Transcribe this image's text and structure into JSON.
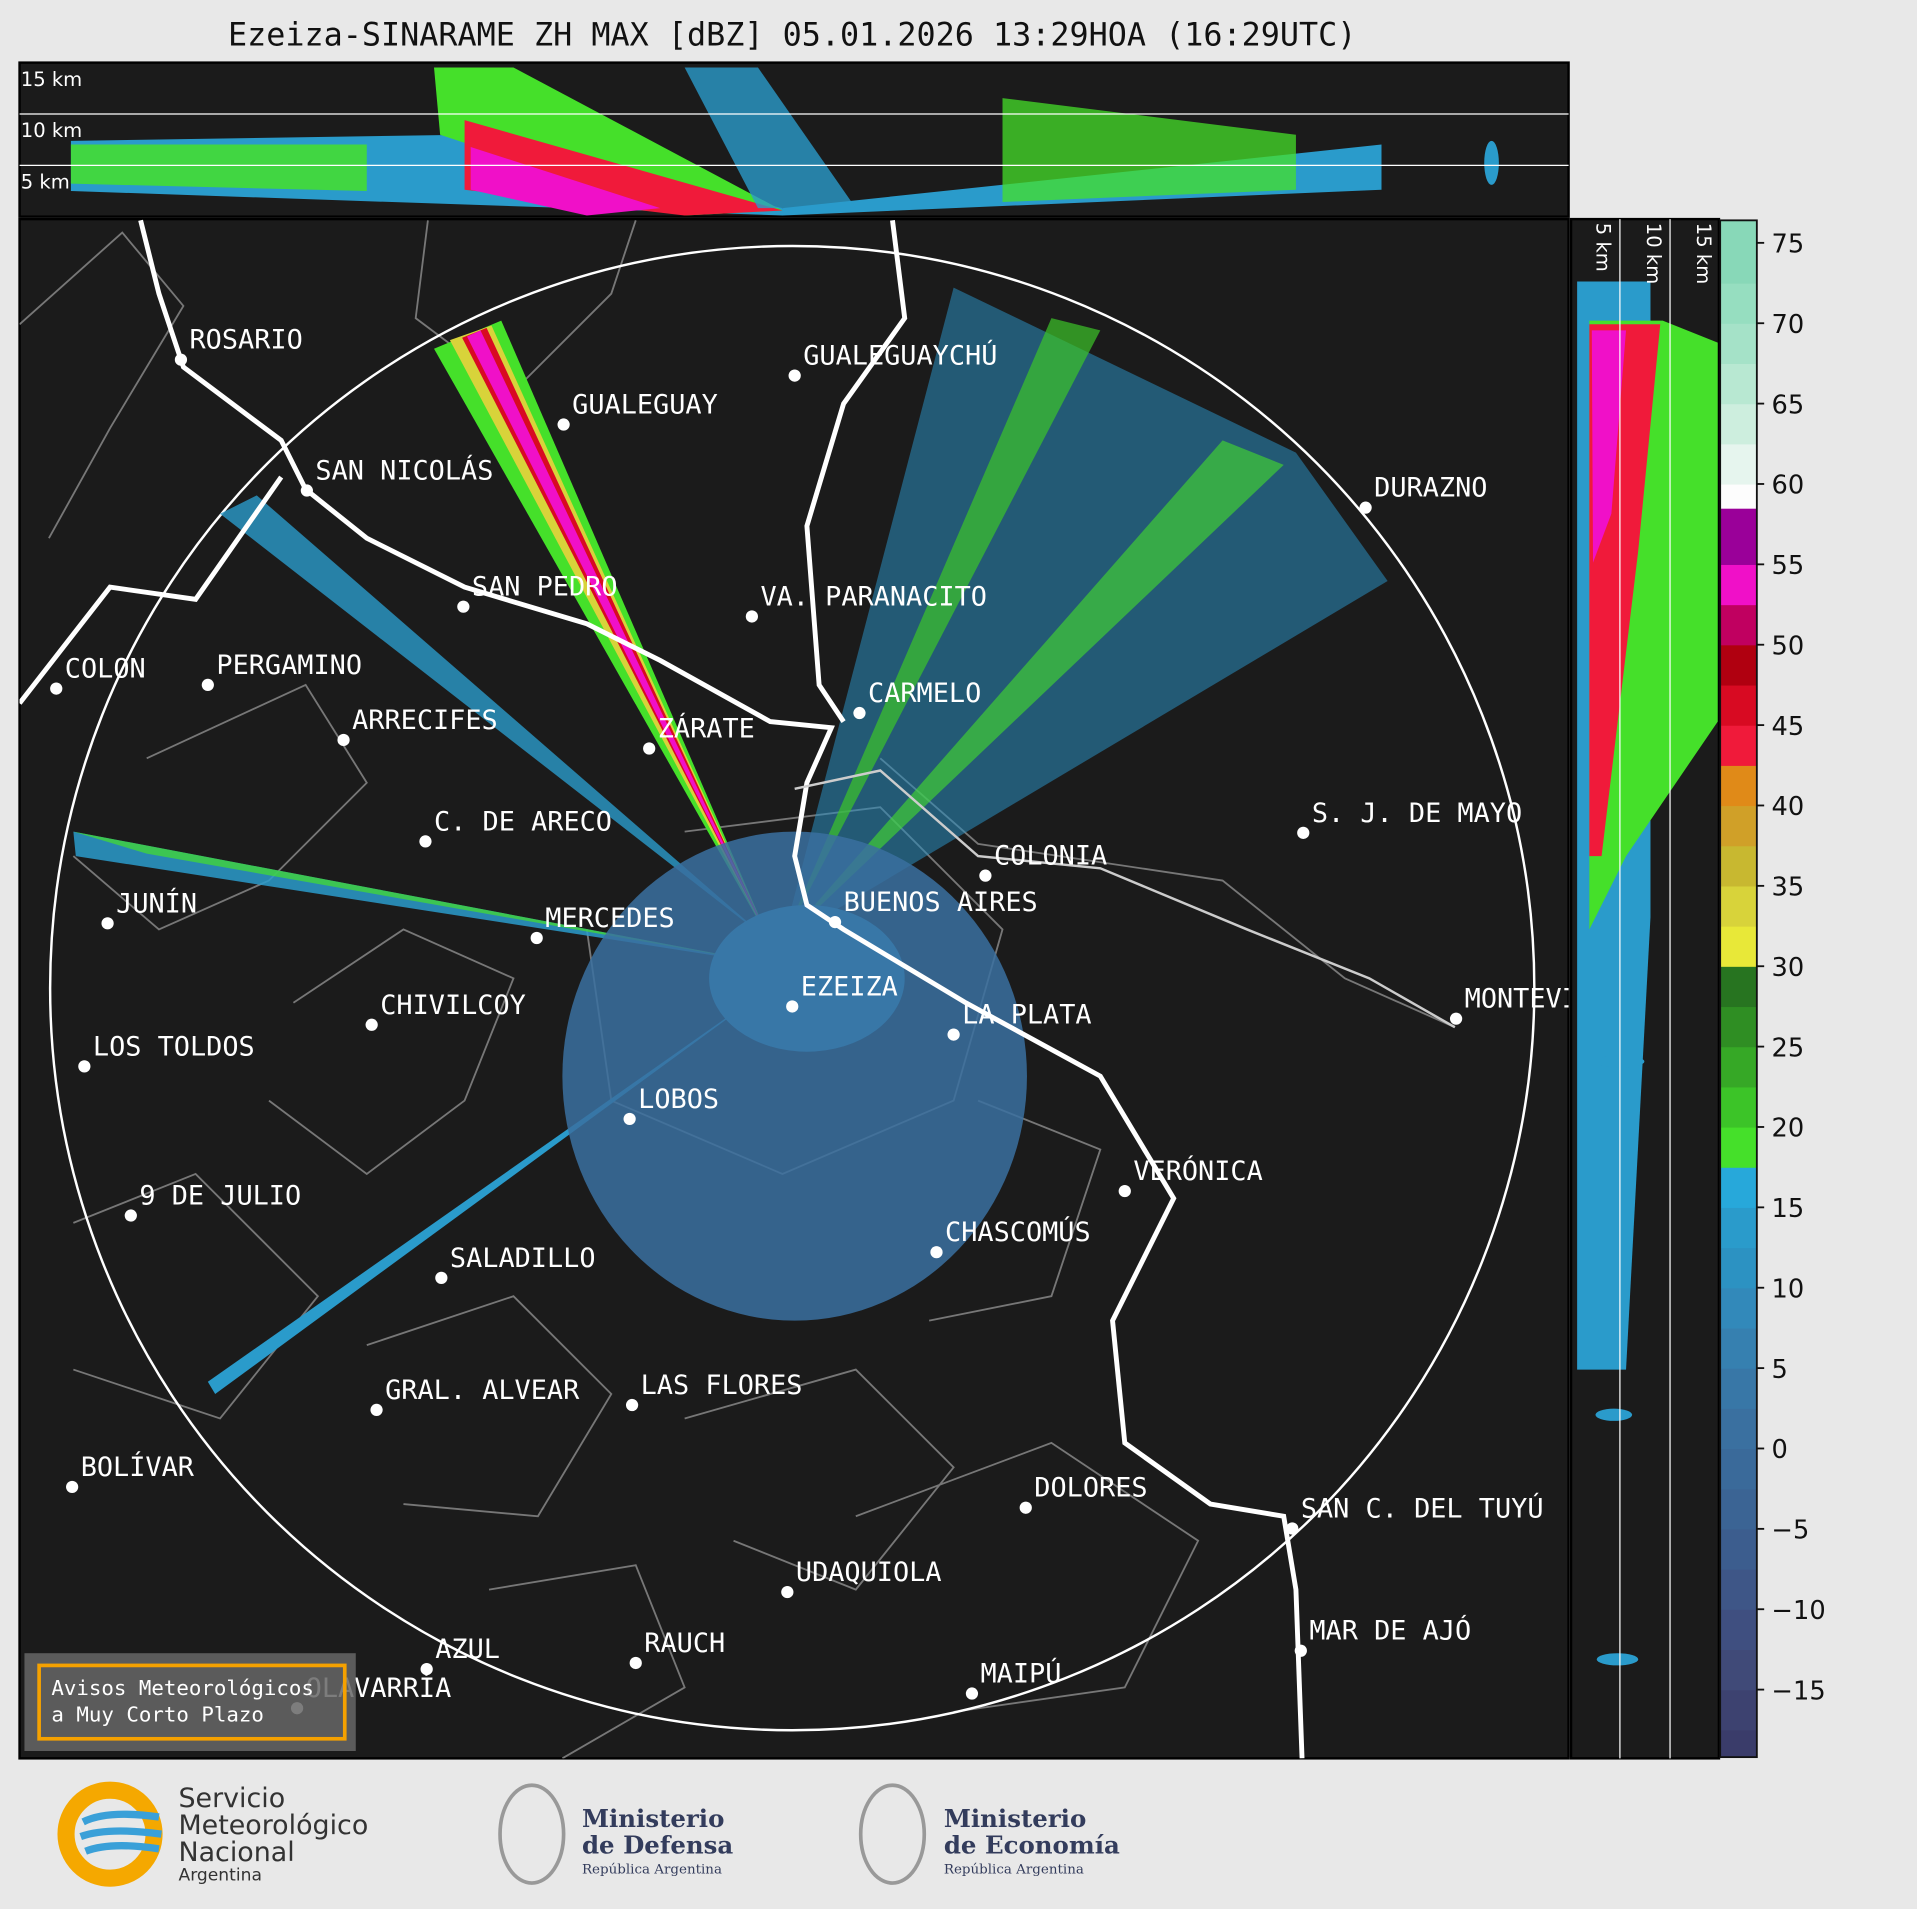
{
  "header": {
    "title": "Ezeiza-SINARAME ZH MAX [dBZ] 05.01.2026 13:29HOA (16:29UTC)"
  },
  "height_labels": [
    "15 km",
    "10 km",
    "5 km"
  ],
  "cities": [
    "ROSARIO",
    "GUALEGUAYCHÚ",
    "GUALEGUAY",
    "SAN NICOLÁS",
    "DURAZNO",
    "SAN PEDRO",
    "VA. PARANACITO",
    "COLON",
    "PERGAMINO",
    "CARMELO",
    "ARRECIFES",
    "ZÁRATE",
    "S. J. DE MAYO",
    "C. DE ARECO",
    "COLONIA",
    "BUENOS AIRES",
    "JUNÍN",
    "MERCEDES",
    "EZEIZA",
    "MONTEVIDEO",
    "CHIVILCOY",
    "LA PLATA",
    "LOS TOLDOS",
    "LOBOS",
    "VERÓNICA",
    "9 DE JULIO",
    "CHASCOMÚS",
    "SALADILLO",
    "GRAL. ALVEAR",
    "LAS FLORES",
    "BOLÍVAR",
    "DOLORES",
    "SAN C. DEL TUYÚ",
    "UDAQUIOLA",
    "MAR DE AJÓ",
    "AZUL",
    "RAUCH",
    "OLAVARRÍA",
    "MAIPÚ"
  ],
  "notice": [
    "Avisos Meteorológicos",
    "a Muy Corto Plazo"
  ],
  "colorbar": {
    "lim": [
      -19.2,
      76.4
    ],
    "ticks": [
      {
        "value": -15,
        "label": "−15"
      },
      {
        "value": -10,
        "label": "−10"
      },
      {
        "value": -5,
        "label": "−5"
      },
      0,
      5,
      10,
      15,
      20,
      25,
      30,
      35,
      40,
      45,
      50,
      55,
      60,
      65,
      70,
      75
    ],
    "bins": [
      -19.2,
      -17.5,
      -15,
      -12.5,
      -10,
      -7.5,
      -5,
      -2.5,
      0,
      2.5,
      5,
      7.5,
      10,
      12.5,
      15,
      17.5,
      20,
      22.5,
      25,
      27.5,
      30,
      32.5,
      35,
      37.5,
      40,
      42.5,
      45,
      47.5,
      50,
      52.5,
      55,
      58.5,
      60,
      62.5,
      65,
      67.5,
      70,
      72.5,
      76.4
    ],
    "colors": [
      "#3a3c6a",
      "#3d4270",
      "#404a78",
      "#3f4f80",
      "#3e5687",
      "#3c5d8e",
      "#3b6494",
      "#3a6a9a",
      "#3a70a0",
      "#3877a7",
      "#3680b0",
      "#3289ba",
      "#2c92c2",
      "#2a9bcb",
      "#27a8da",
      "#45e02a",
      "#3cc428",
      "#36a826",
      "#2f8e23",
      "#277420",
      "#e8e838",
      "#d8d33a",
      "#c8b830",
      "#d0a028",
      "#e08a18",
      "#f01a3a",
      "#d80a22",
      "#b00010",
      "#c00060",
      "#f010c8",
      "#9a0099",
      "#fdfdfd",
      "#e6f5ee",
      "#cdeede",
      "#b8e8d2",
      "#a5e2c8",
      "#96dec0",
      "#88d8b8"
    ]
  },
  "logos": {
    "smn": [
      "Servicio",
      "Meteorológico",
      "Nacional",
      "Argentina"
    ],
    "defensa": [
      "Ministerio",
      "de Defensa",
      "República Argentina"
    ],
    "economia": [
      "Ministerio",
      "de Economía",
      "República Argentina"
    ]
  }
}
